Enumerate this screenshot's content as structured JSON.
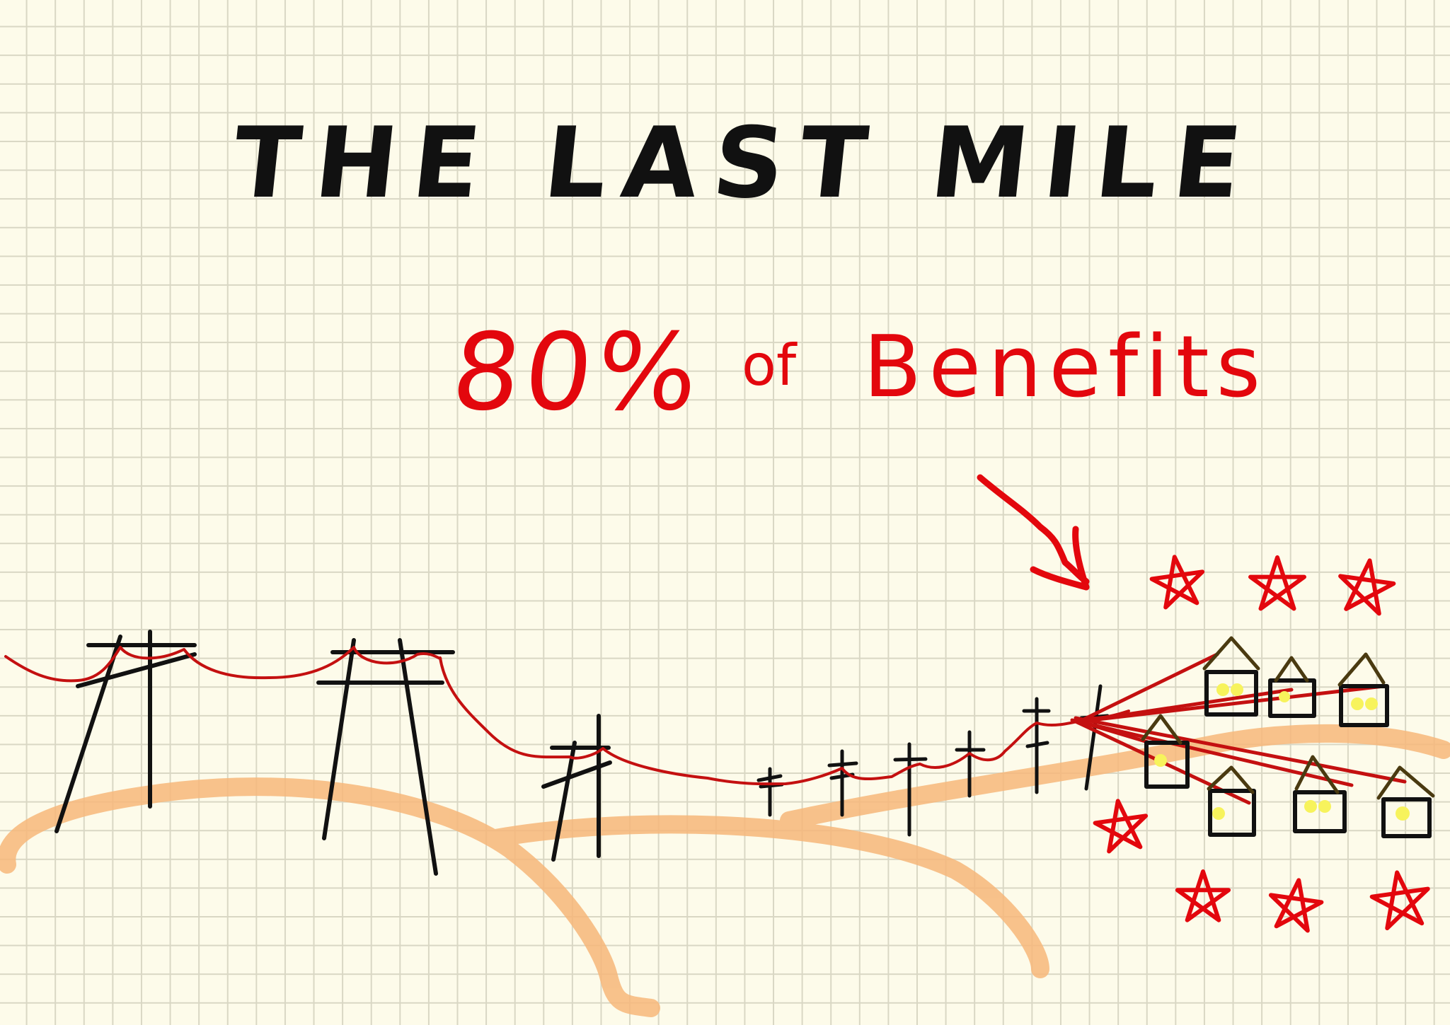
{
  "title": "THE LAST MILE",
  "subtitle": {
    "percent": "80%",
    "of": "of",
    "benefits": "Benefits"
  },
  "colors": {
    "paper": "#fdfbea",
    "grid": "#d9d7c4",
    "ink": "#111111",
    "red": "#e3070d",
    "wire": "#c41010",
    "hills": "#f7b77a",
    "house": "#111111",
    "roof": "#4a3a10",
    "window": "#f7f35c"
  },
  "icons": {
    "poles": "utility-pole-icon",
    "houses": "house-icon",
    "stars": "star-icon",
    "arrow": "arrow-icon"
  }
}
